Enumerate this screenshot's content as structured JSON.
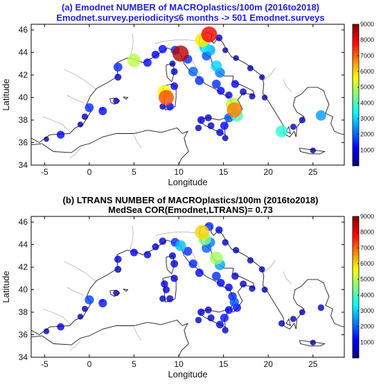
{
  "colors": {
    "title_a": "#1f1fe6",
    "title_b": "#000000",
    "coast": "#1a1a1a",
    "river": "#9a9a9a",
    "frame": "#000000"
  },
  "chart_data": [
    {
      "type": "scatter",
      "panel_label": "(a)",
      "title": "(a)  Emodnet NUMBER of MACROplastics/100m  (2016to2018)",
      "subtitle": "Emodnet.survey.periodicity≤6 months -> 501 Emodnet.surveys",
      "xlabel": "Longitude",
      "ylabel": "Latitude",
      "xlim": [
        -6.5,
        28.5
      ],
      "ylim": [
        34,
        46.5
      ],
      "xticks": [
        -5,
        0,
        5,
        10,
        15,
        20,
        25
      ],
      "yticks": [
        34,
        36,
        38,
        40,
        42,
        44,
        46
      ],
      "colorbar": {
        "min": 0,
        "max": 9000,
        "ticks": [
          1000,
          2000,
          3000,
          4000,
          5000,
          6000,
          7000,
          8000,
          9000
        ],
        "colormap": "jet"
      },
      "points": [
        {
          "lon": -4.8,
          "lat": 36.3,
          "value": 200
        },
        {
          "lon": -3.2,
          "lat": 36.7,
          "value": 1000
        },
        {
          "lon": -1.0,
          "lat": 37.6,
          "value": 300
        },
        {
          "lon": -0.5,
          "lat": 38.3,
          "value": 500
        },
        {
          "lon": 0.0,
          "lat": 39.1,
          "value": 1500
        },
        {
          "lon": 1.5,
          "lat": 38.8,
          "value": 1200
        },
        {
          "lon": 3.0,
          "lat": 39.7,
          "value": 400
        },
        {
          "lon": 3.2,
          "lat": 41.8,
          "value": 600
        },
        {
          "lon": 3.2,
          "lat": 42.7,
          "value": 1500
        },
        {
          "lon": 5.0,
          "lat": 43.3,
          "value": 5000
        },
        {
          "lon": 6.5,
          "lat": 43.1,
          "value": 1200
        },
        {
          "lon": 7.4,
          "lat": 43.8,
          "value": 1000
        },
        {
          "lon": 8.2,
          "lat": 44.3,
          "value": 1200
        },
        {
          "lon": 9.6,
          "lat": 44.2,
          "value": 1500
        },
        {
          "lon": 10.2,
          "lat": 43.9,
          "value": 8500
        },
        {
          "lon": 9.3,
          "lat": 43.0,
          "value": 400
        },
        {
          "lon": 9.5,
          "lat": 42.3,
          "value": 600
        },
        {
          "lon": 9.5,
          "lat": 41.0,
          "value": 900
        },
        {
          "lon": 8.6,
          "lat": 40.0,
          "value": 7200
        },
        {
          "lon": 8.4,
          "lat": 40.5,
          "value": 5600
        },
        {
          "lon": 9.0,
          "lat": 39.2,
          "value": 1000
        },
        {
          "lon": 8.2,
          "lat": 39.2,
          "value": 400
        },
        {
          "lon": 11.0,
          "lat": 43.4,
          "value": 1500
        },
        {
          "lon": 11.6,
          "lat": 42.3,
          "value": 2000
        },
        {
          "lon": 12.3,
          "lat": 41.5,
          "value": 1500
        },
        {
          "lon": 12.6,
          "lat": 45.1,
          "value": 5800
        },
        {
          "lon": 12.9,
          "lat": 44.5,
          "value": 3200
        },
        {
          "lon": 13.1,
          "lat": 43.7,
          "value": 1800
        },
        {
          "lon": 13.4,
          "lat": 45.6,
          "value": 8000
        },
        {
          "lon": 13.5,
          "lat": 44.2,
          "value": 2600
        },
        {
          "lon": 14.2,
          "lat": 42.8,
          "value": 3000
        },
        {
          "lon": 14.6,
          "lat": 42.2,
          "value": 2200
        },
        {
          "lon": 14.2,
          "lat": 41.2,
          "value": 1500
        },
        {
          "lon": 14.7,
          "lat": 40.6,
          "value": 1000
        },
        {
          "lon": 15.6,
          "lat": 40.2,
          "value": 800
        },
        {
          "lon": 16.3,
          "lat": 41.2,
          "value": 1000
        },
        {
          "lon": 17.2,
          "lat": 40.5,
          "value": 600
        },
        {
          "lon": 18.2,
          "lat": 40.1,
          "value": 400
        },
        {
          "lon": 16.0,
          "lat": 39.4,
          "value": 5000
        },
        {
          "lon": 16.2,
          "lat": 38.9,
          "value": 6800
        },
        {
          "lon": 16.5,
          "lat": 38.4,
          "value": 4000
        },
        {
          "lon": 15.6,
          "lat": 38.2,
          "value": 1800
        },
        {
          "lon": 15.1,
          "lat": 37.5,
          "value": 1200
        },
        {
          "lon": 14.6,
          "lat": 36.9,
          "value": 800
        },
        {
          "lon": 13.6,
          "lat": 37.5,
          "value": 600
        },
        {
          "lon": 12.5,
          "lat": 38.0,
          "value": 900
        },
        {
          "lon": 12.2,
          "lat": 37.3,
          "value": 500
        },
        {
          "lon": 13.3,
          "lat": 38.2,
          "value": 700
        },
        {
          "lon": 15.2,
          "lat": 36.4,
          "value": 400
        },
        {
          "lon": 14.5,
          "lat": 45.3,
          "value": 600
        },
        {
          "lon": 15.2,
          "lat": 44.2,
          "value": 300
        },
        {
          "lon": 16.4,
          "lat": 43.5,
          "value": 300
        },
        {
          "lon": 18.0,
          "lat": 42.6,
          "value": 400
        },
        {
          "lon": 19.3,
          "lat": 41.8,
          "value": 300
        },
        {
          "lon": 19.6,
          "lat": 40.0,
          "value": 300
        },
        {
          "lon": 21.5,
          "lat": 37.0,
          "value": 3700
        },
        {
          "lon": 22.8,
          "lat": 37.4,
          "value": 400
        },
        {
          "lon": 23.8,
          "lat": 38.0,
          "value": 500
        },
        {
          "lon": 25.9,
          "lat": 38.4,
          "value": 2500
        },
        {
          "lon": 25.0,
          "lat": 35.3,
          "value": 300
        }
      ]
    },
    {
      "type": "scatter",
      "panel_label": "(b)",
      "title": "(b)  LTRANS NUMBER of MACROplastics/100m  (2016to2018)",
      "subtitle": "MedSea COR(Emodnet,LTRANS)= 0.73",
      "xlabel": "Longitude",
      "ylabel": "Latitude",
      "xlim": [
        -6.5,
        28.5
      ],
      "ylim": [
        34,
        46.5
      ],
      "xticks": [
        -5,
        0,
        5,
        10,
        15,
        20,
        25
      ],
      "yticks": [
        34,
        36,
        38,
        40,
        42,
        44,
        46
      ],
      "colorbar": {
        "min": 0,
        "max": 9000,
        "ticks": [
          1000,
          2000,
          3000,
          4000,
          5000,
          6000,
          7000,
          8000,
          9000
        ],
        "colormap": "jet"
      },
      "points": [
        {
          "lon": -4.8,
          "lat": 36.3,
          "value": 300
        },
        {
          "lon": -3.2,
          "lat": 36.7,
          "value": 800
        },
        {
          "lon": -1.0,
          "lat": 37.6,
          "value": 300
        },
        {
          "lon": -0.5,
          "lat": 38.3,
          "value": 400
        },
        {
          "lon": 0.0,
          "lat": 39.1,
          "value": 1700
        },
        {
          "lon": 1.5,
          "lat": 38.8,
          "value": 1300
        },
        {
          "lon": 3.0,
          "lat": 39.7,
          "value": 400
        },
        {
          "lon": 3.2,
          "lat": 41.8,
          "value": 600
        },
        {
          "lon": 3.2,
          "lat": 42.7,
          "value": 800
        },
        {
          "lon": 5.0,
          "lat": 43.3,
          "value": 900
        },
        {
          "lon": 6.5,
          "lat": 43.1,
          "value": 800
        },
        {
          "lon": 7.4,
          "lat": 43.8,
          "value": 700
        },
        {
          "lon": 8.2,
          "lat": 44.3,
          "value": 800
        },
        {
          "lon": 9.6,
          "lat": 44.2,
          "value": 1500
        },
        {
          "lon": 10.2,
          "lat": 43.9,
          "value": 2800
        },
        {
          "lon": 9.3,
          "lat": 43.0,
          "value": 700
        },
        {
          "lon": 9.5,
          "lat": 42.3,
          "value": 900
        },
        {
          "lon": 9.5,
          "lat": 41.0,
          "value": 800
        },
        {
          "lon": 8.6,
          "lat": 40.0,
          "value": 700
        },
        {
          "lon": 8.4,
          "lat": 40.5,
          "value": 800
        },
        {
          "lon": 9.0,
          "lat": 39.2,
          "value": 700
        },
        {
          "lon": 8.2,
          "lat": 39.2,
          "value": 500
        },
        {
          "lon": 11.0,
          "lat": 43.4,
          "value": 1500
        },
        {
          "lon": 11.6,
          "lat": 42.3,
          "value": 1400
        },
        {
          "lon": 12.3,
          "lat": 41.5,
          "value": 1200
        },
        {
          "lon": 12.6,
          "lat": 45.1,
          "value": 6000
        },
        {
          "lon": 12.9,
          "lat": 44.5,
          "value": 4500
        },
        {
          "lon": 13.1,
          "lat": 43.7,
          "value": 2000
        },
        {
          "lon": 13.4,
          "lat": 45.6,
          "value": 1500
        },
        {
          "lon": 13.5,
          "lat": 44.2,
          "value": 2200
        },
        {
          "lon": 14.2,
          "lat": 42.8,
          "value": 4800
        },
        {
          "lon": 14.6,
          "lat": 42.2,
          "value": 2600
        },
        {
          "lon": 14.2,
          "lat": 41.2,
          "value": 1500
        },
        {
          "lon": 14.7,
          "lat": 40.6,
          "value": 1100
        },
        {
          "lon": 15.6,
          "lat": 40.2,
          "value": 900
        },
        {
          "lon": 16.3,
          "lat": 41.2,
          "value": 800
        },
        {
          "lon": 17.2,
          "lat": 40.5,
          "value": 600
        },
        {
          "lon": 18.2,
          "lat": 40.1,
          "value": 500
        },
        {
          "lon": 16.0,
          "lat": 39.4,
          "value": 1400
        },
        {
          "lon": 16.2,
          "lat": 38.9,
          "value": 1800
        },
        {
          "lon": 16.5,
          "lat": 38.4,
          "value": 1200
        },
        {
          "lon": 15.6,
          "lat": 38.2,
          "value": 1000
        },
        {
          "lon": 15.1,
          "lat": 37.5,
          "value": 1300
        },
        {
          "lon": 14.6,
          "lat": 36.9,
          "value": 900
        },
        {
          "lon": 13.6,
          "lat": 37.5,
          "value": 700
        },
        {
          "lon": 12.5,
          "lat": 38.0,
          "value": 800
        },
        {
          "lon": 12.2,
          "lat": 37.3,
          "value": 500
        },
        {
          "lon": 13.3,
          "lat": 38.2,
          "value": 700
        },
        {
          "lon": 15.2,
          "lat": 36.4,
          "value": 500
        },
        {
          "lon": 14.5,
          "lat": 45.3,
          "value": 800
        },
        {
          "lon": 15.2,
          "lat": 44.2,
          "value": 500
        },
        {
          "lon": 16.4,
          "lat": 43.5,
          "value": 500
        },
        {
          "lon": 18.0,
          "lat": 42.6,
          "value": 500
        },
        {
          "lon": 19.3,
          "lat": 41.8,
          "value": 400
        },
        {
          "lon": 19.6,
          "lat": 40.0,
          "value": 400
        },
        {
          "lon": 21.5,
          "lat": 37.0,
          "value": 500
        },
        {
          "lon": 22.8,
          "lat": 37.4,
          "value": 400
        },
        {
          "lon": 23.8,
          "lat": 38.0,
          "value": 400
        },
        {
          "lon": 25.9,
          "lat": 38.4,
          "value": 500
        },
        {
          "lon": 25.0,
          "lat": 35.3,
          "value": 300
        }
      ]
    }
  ]
}
